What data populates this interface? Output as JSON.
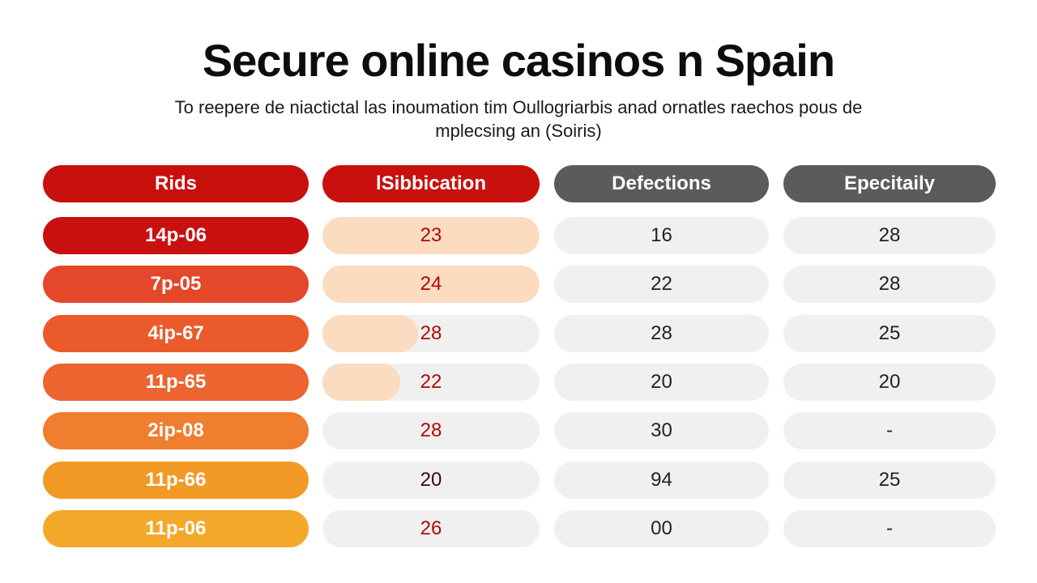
{
  "title": "Secure online casinos n Spain",
  "subtitle": "To reepere de niactictal las inoumation tim Oullogriarbis anad ornatles raechos pous de mplecsing an (Soiris)",
  "colors": {
    "header_red": "#c8100f",
    "header_grey": "#5b5b5b",
    "peach_fill": "#fbdcc0",
    "row_light": "#f0f0f0"
  },
  "headers": [
    "Rids",
    "lSibbication",
    "Defections",
    "Epecitaily"
  ],
  "rows": [
    {
      "rid": "14p-06",
      "rid_color": "#c8100f",
      "sibbication": "23",
      "sib_fill": 1.0,
      "defections": "16",
      "epecitaily": "28"
    },
    {
      "rid": "7p-05",
      "rid_color": "#e4472a",
      "sibbication": "24",
      "sib_fill": 1.0,
      "defections": "22",
      "epecitaily": "28"
    },
    {
      "rid": "4ip-67",
      "rid_color": "#ea5a2a",
      "sibbication": "28",
      "sib_fill": 0.44,
      "defections": "28",
      "epecitaily": "25"
    },
    {
      "rid": "11p-65",
      "rid_color": "#ec6430",
      "sibbication": "22",
      "sib_fill": 0.36,
      "defections": "20",
      "epecitaily": "20"
    },
    {
      "rid": "2ip-08",
      "rid_color": "#ef7e2e",
      "sibbication": "28",
      "sib_fill": 0.0,
      "defections": "30",
      "epecitaily": "-"
    },
    {
      "rid": "11p-66",
      "rid_color": "#f29a26",
      "sibbication": "20",
      "sib_fill": 0.0,
      "defections": "94",
      "epecitaily": "25"
    },
    {
      "rid": "11p-06",
      "rid_color": "#f4a82a",
      "sibbication": "26",
      "sib_fill": 0.0,
      "defections": "00",
      "epecitaily": "-"
    }
  ]
}
